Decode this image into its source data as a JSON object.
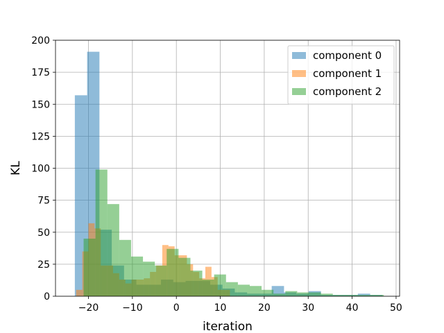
{
  "chart_data": {
    "type": "bar",
    "subtype": "overlaid-histogram",
    "title": "",
    "xlabel": "iteration",
    "ylabel": "KL",
    "xlim": [
      -27.5,
      50.8
    ],
    "ylim": [
      0,
      200
    ],
    "xticks": [
      -20,
      -10,
      0,
      10,
      20,
      30,
      40,
      50
    ],
    "yticks": [
      0,
      25,
      50,
      75,
      100,
      125,
      150,
      175,
      200
    ],
    "grid": true,
    "legend_position": "top-right",
    "series": [
      {
        "name": "component 0",
        "color": "#1f77b4",
        "opacity": 0.5,
        "bins": [
          {
            "x0": -23.1,
            "x1": -20.3,
            "count": 157
          },
          {
            "x0": -20.3,
            "x1": -17.5,
            "count": 191
          },
          {
            "x0": -17.5,
            "x1": -14.7,
            "count": 52
          },
          {
            "x0": -14.7,
            "x1": -11.9,
            "count": 24
          },
          {
            "x0": -11.9,
            "x1": -9.1,
            "count": 13
          },
          {
            "x0": -9.1,
            "x1": -6.3,
            "count": 9
          },
          {
            "x0": -6.3,
            "x1": -3.5,
            "count": 9
          },
          {
            "x0": -3.5,
            "x1": -0.7,
            "count": 13
          },
          {
            "x0": -0.7,
            "x1": 2.1,
            "count": 11
          },
          {
            "x0": 2.1,
            "x1": 4.9,
            "count": 12
          },
          {
            "x0": 4.9,
            "x1": 7.7,
            "count": 12
          },
          {
            "x0": 7.7,
            "x1": 10.5,
            "count": 9
          },
          {
            "x0": 10.5,
            "x1": 13.3,
            "count": 6
          },
          {
            "x0": 13.3,
            "x1": 16.1,
            "count": 3
          },
          {
            "x0": 16.1,
            "x1": 18.9,
            "count": 2
          },
          {
            "x0": 18.9,
            "x1": 21.7,
            "count": 2
          },
          {
            "x0": 21.7,
            "x1": 24.5,
            "count": 8
          },
          {
            "x0": 24.5,
            "x1": 27.3,
            "count": 3
          },
          {
            "x0": 27.3,
            "x1": 30.1,
            "count": 2
          },
          {
            "x0": 30.1,
            "x1": 32.9,
            "count": 4
          },
          {
            "x0": 32.9,
            "x1": 35.7,
            "count": 1
          },
          {
            "x0": 35.7,
            "x1": 38.5,
            "count": 1
          },
          {
            "x0": 38.5,
            "x1": 41.3,
            "count": 1
          },
          {
            "x0": 41.3,
            "x1": 44.1,
            "count": 2
          },
          {
            "x0": 44.1,
            "x1": 46.9,
            "count": 1
          }
        ]
      },
      {
        "name": "component 1",
        "color": "#ff7f0e",
        "opacity": 0.5,
        "bins": [
          {
            "x0": -22.8,
            "x1": -21.4,
            "count": 5
          },
          {
            "x0": -21.4,
            "x1": -20.0,
            "count": 35
          },
          {
            "x0": -20.0,
            "x1": -18.6,
            "count": 57
          },
          {
            "x0": -18.6,
            "x1": -17.2,
            "count": 53
          },
          {
            "x0": -17.2,
            "x1": -15.8,
            "count": 24
          },
          {
            "x0": -15.8,
            "x1": -14.4,
            "count": 24
          },
          {
            "x0": -14.4,
            "x1": -13.0,
            "count": 18
          },
          {
            "x0": -13.0,
            "x1": -11.6,
            "count": 13
          },
          {
            "x0": -11.6,
            "x1": -10.2,
            "count": 10
          },
          {
            "x0": -10.2,
            "x1": -8.8,
            "count": 13
          },
          {
            "x0": -8.8,
            "x1": -7.4,
            "count": 13
          },
          {
            "x0": -7.4,
            "x1": -6.0,
            "count": 14
          },
          {
            "x0": -6.0,
            "x1": -4.6,
            "count": 19
          },
          {
            "x0": -4.6,
            "x1": -3.2,
            "count": 24
          },
          {
            "x0": -3.2,
            "x1": -1.8,
            "count": 40
          },
          {
            "x0": -1.8,
            "x1": -0.4,
            "count": 39
          },
          {
            "x0": -0.4,
            "x1": 1.0,
            "count": 32
          },
          {
            "x0": 1.0,
            "x1": 2.4,
            "count": 32
          },
          {
            "x0": 2.4,
            "x1": 3.8,
            "count": 25
          },
          {
            "x0": 3.8,
            "x1": 5.2,
            "count": 19
          },
          {
            "x0": 5.2,
            "x1": 6.6,
            "count": 14
          },
          {
            "x0": 6.6,
            "x1": 8.0,
            "count": 23
          },
          {
            "x0": 8.0,
            "x1": 9.4,
            "count": 15
          },
          {
            "x0": 9.4,
            "x1": 10.8,
            "count": 5
          },
          {
            "x0": 10.8,
            "x1": 12.2,
            "count": 5
          }
        ]
      },
      {
        "name": "component 2",
        "color": "#2ca02c",
        "opacity": 0.5,
        "bins": [
          {
            "x0": -21.1,
            "x1": -18.4,
            "count": 45
          },
          {
            "x0": -18.4,
            "x1": -15.7,
            "count": 99
          },
          {
            "x0": -15.7,
            "x1": -13.0,
            "count": 72
          },
          {
            "x0": -13.0,
            "x1": -10.3,
            "count": 44
          },
          {
            "x0": -10.3,
            "x1": -7.6,
            "count": 31
          },
          {
            "x0": -7.6,
            "x1": -4.9,
            "count": 27
          },
          {
            "x0": -4.9,
            "x1": -2.2,
            "count": 24
          },
          {
            "x0": -2.2,
            "x1": 0.5,
            "count": 37
          },
          {
            "x0": 0.5,
            "x1": 3.2,
            "count": 30
          },
          {
            "x0": 3.2,
            "x1": 5.9,
            "count": 20
          },
          {
            "x0": 5.9,
            "x1": 8.6,
            "count": 13
          },
          {
            "x0": 8.6,
            "x1": 11.3,
            "count": 17
          },
          {
            "x0": 11.3,
            "x1": 14.0,
            "count": 11
          },
          {
            "x0": 14.0,
            "x1": 16.7,
            "count": 9
          },
          {
            "x0": 16.7,
            "x1": 19.4,
            "count": 8
          },
          {
            "x0": 19.4,
            "x1": 22.1,
            "count": 5
          },
          {
            "x0": 22.1,
            "x1": 24.8,
            "count": 2
          },
          {
            "x0": 24.8,
            "x1": 27.5,
            "count": 4
          },
          {
            "x0": 27.5,
            "x1": 30.2,
            "count": 3
          },
          {
            "x0": 30.2,
            "x1": 32.9,
            "count": 3
          },
          {
            "x0": 32.9,
            "x1": 35.6,
            "count": 2
          },
          {
            "x0": 35.6,
            "x1": 38.3,
            "count": 1
          },
          {
            "x0": 38.3,
            "x1": 41.0,
            "count": 1
          },
          {
            "x0": 41.0,
            "x1": 43.7,
            "count": 1
          },
          {
            "x0": 43.7,
            "x1": 47.2,
            "count": 1
          }
        ]
      }
    ]
  }
}
